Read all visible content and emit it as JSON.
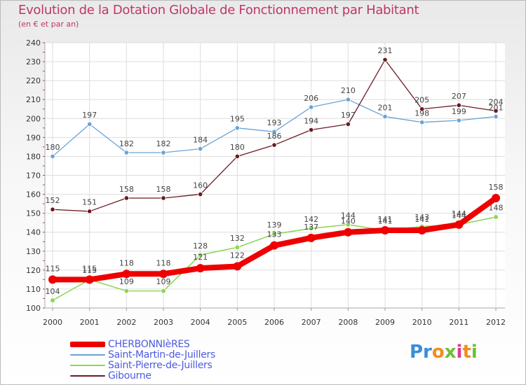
{
  "header": {
    "title": "Evolution de la Dotation Globale de Fonctionnement par Habitant",
    "subtitle": "(en € et par an)"
  },
  "logo": {
    "text": "Proxiti"
  },
  "chart_data": {
    "type": "line",
    "title": "Evolution de la Dotation Globale de Fonctionnement par Habitant",
    "subtitle": "(en € et par an)",
    "xlabel": "",
    "ylabel": "",
    "categories": [
      "2000",
      "2001",
      "2002",
      "2003",
      "2004",
      "2005",
      "2006",
      "2007",
      "2008",
      "2009",
      "2010",
      "2011",
      "2012"
    ],
    "ylim": [
      100,
      240
    ],
    "yticks": [
      100,
      110,
      120,
      130,
      140,
      150,
      160,
      170,
      180,
      190,
      200,
      210,
      220,
      230,
      240
    ],
    "grid": true,
    "legend_position": "bottom-left",
    "series": [
      {
        "name": "Saint-Martin-de-Juillers",
        "color": "#6aa3d6",
        "values": [
          180,
          197,
          182,
          182,
          184,
          195,
          193,
          206,
          210,
          201,
          198,
          199,
          201
        ]
      },
      {
        "name": "Gibourne",
        "color": "#6b1a22",
        "values": [
          152,
          151,
          158,
          158,
          160,
          180,
          186,
          194,
          197,
          231,
          205,
          207,
          204
        ]
      },
      {
        "name": "Saint-Pierre-de-Juillers",
        "color": "#8ed65a",
        "values": [
          104,
          115,
          109,
          109,
          128,
          132,
          139,
          142,
          144,
          141,
          143,
          144,
          148
        ]
      },
      {
        "name": "CHERBONNIèRES",
        "color": "#ee0000",
        "values": [
          115,
          115,
          118,
          118,
          121,
          122,
          133,
          137,
          140,
          141,
          141,
          144,
          158
        ]
      }
    ]
  }
}
